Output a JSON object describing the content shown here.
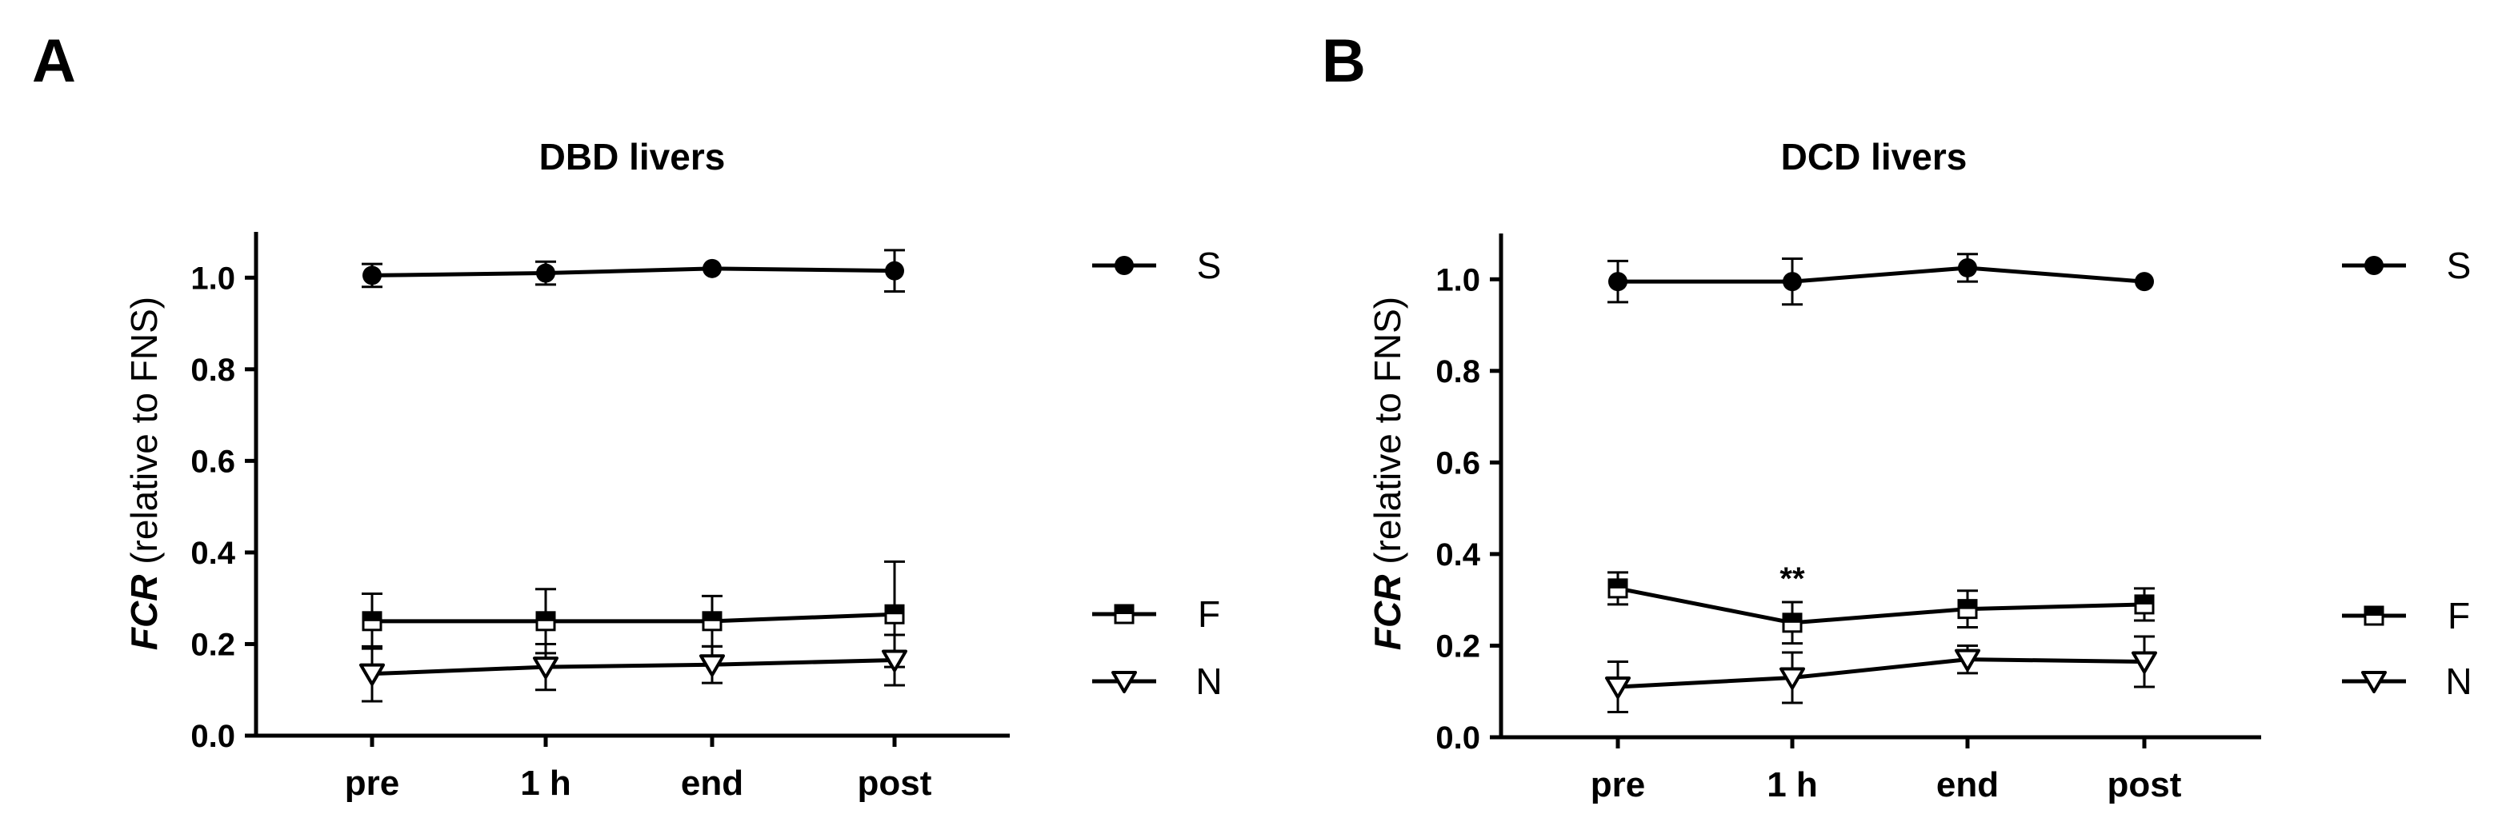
{
  "colors": {
    "ink": "#000000",
    "background": "#ffffff"
  },
  "chart_data": [
    {
      "panel": "A",
      "type": "line",
      "title": "DBD livers",
      "ylabel_italic": "FCR",
      "ylabel_rest": " (relative to FNS)",
      "xlabel": "",
      "categories": [
        "pre",
        "1 h",
        "end",
        "post"
      ],
      "ylim": [
        0,
        1.1
      ],
      "yticks": [
        "0.0",
        "0.2",
        "0.4",
        "0.6",
        "0.8",
        "1.0"
      ],
      "grid": false,
      "legend_position": "right",
      "series": [
        {
          "name": "S",
          "marker": "circle",
          "values": [
            1.005,
            1.01,
            1.02,
            1.015
          ],
          "err": [
            0.025,
            0.025,
            0.0,
            0.045
          ]
        },
        {
          "name": "F",
          "marker": "square",
          "values": [
            0.25,
            0.25,
            0.25,
            0.265
          ],
          "err": [
            0.06,
            0.07,
            0.055,
            0.115
          ]
        },
        {
          "name": "N",
          "marker": "triangle-down",
          "values": [
            0.135,
            0.15,
            0.155,
            0.165
          ],
          "err": [
            0.06,
            0.05,
            0.04,
            0.055
          ]
        }
      ],
      "annotations": []
    },
    {
      "panel": "B",
      "type": "line",
      "title": "DCD livers",
      "ylabel_italic": "FCR",
      "ylabel_rest": " (relative to FNS)",
      "xlabel": "",
      "categories": [
        "pre",
        "1 h",
        "end",
        "post"
      ],
      "ylim": [
        0,
        1.1
      ],
      "yticks": [
        "0.0",
        "0.2",
        "0.4",
        "0.6",
        "0.8",
        "1.0"
      ],
      "grid": false,
      "legend_position": "right",
      "series": [
        {
          "name": "S",
          "marker": "circle",
          "values": [
            0.995,
            0.995,
            1.025,
            0.995
          ],
          "err": [
            0.045,
            0.05,
            0.03,
            0.0
          ]
        },
        {
          "name": "F",
          "marker": "square",
          "values": [
            0.325,
            0.25,
            0.28,
            0.29
          ],
          "err": [
            0.035,
            0.045,
            0.04,
            0.035
          ]
        },
        {
          "name": "N",
          "marker": "triangle-down",
          "values": [
            0.11,
            0.13,
            0.17,
            0.165
          ],
          "err": [
            0.055,
            0.055,
            0.03,
            0.055
          ]
        }
      ],
      "annotations": [
        {
          "text": "**",
          "category": "1 h",
          "series": "F"
        }
      ]
    }
  ]
}
